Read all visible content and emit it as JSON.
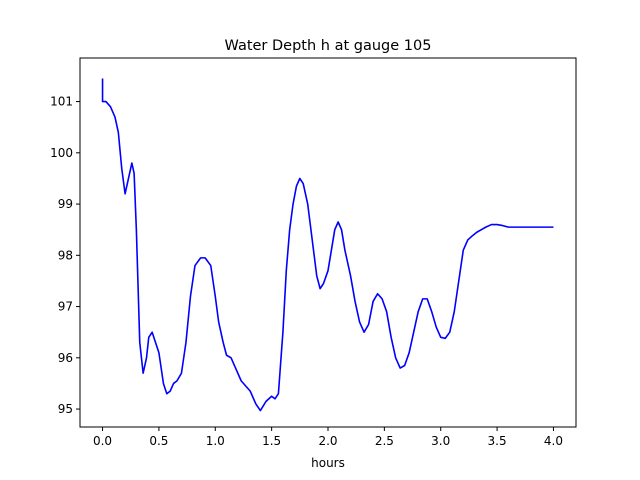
{
  "chart_data": {
    "type": "line",
    "title": "Water Depth h at gauge 105",
    "xlabel": "hours",
    "ylabel": "",
    "xlim": [
      -0.2,
      4.2
    ],
    "ylim": [
      94.65,
      101.85
    ],
    "xticks": [
      0.0,
      0.5,
      1.0,
      1.5,
      2.0,
      2.5,
      3.0,
      3.5,
      4.0
    ],
    "xtick_labels": [
      "0.0",
      "0.5",
      "1.0",
      "1.5",
      "2.0",
      "2.5",
      "3.0",
      "3.5",
      "4.0"
    ],
    "yticks": [
      95,
      96,
      97,
      98,
      99,
      100,
      101
    ],
    "ytick_labels": [
      "95",
      "96",
      "97",
      "98",
      "99",
      "100",
      "101"
    ],
    "grid": false,
    "series": [
      {
        "color": "#0000ff",
        "x": [
          0.0,
          0.0,
          0.0,
          0.03,
          0.07,
          0.11,
          0.14,
          0.17,
          0.2,
          0.23,
          0.26,
          0.28,
          0.3,
          0.33,
          0.36,
          0.39,
          0.41,
          0.44,
          0.47,
          0.5,
          0.54,
          0.57,
          0.6,
          0.63,
          0.66,
          0.7,
          0.74,
          0.78,
          0.82,
          0.87,
          0.91,
          0.96,
          1.0,
          1.03,
          1.07,
          1.1,
          1.14,
          1.18,
          1.23,
          1.27,
          1.31,
          1.36,
          1.4,
          1.45,
          1.5,
          1.53,
          1.56,
          1.6,
          1.63,
          1.66,
          1.69,
          1.72,
          1.75,
          1.78,
          1.82,
          1.86,
          1.9,
          1.93,
          1.96,
          2.0,
          2.03,
          2.06,
          2.09,
          2.12,
          2.15,
          2.2,
          2.24,
          2.28,
          2.32,
          2.36,
          2.4,
          2.44,
          2.48,
          2.52,
          2.56,
          2.6,
          2.64,
          2.68,
          2.72,
          2.76,
          2.8,
          2.84,
          2.88,
          2.92,
          2.96,
          3.0,
          3.04,
          3.08,
          3.12,
          3.16,
          3.2,
          3.24,
          3.28,
          3.32,
          3.36,
          3.4,
          3.45,
          3.5,
          3.55,
          3.6,
          3.65,
          3.7,
          3.75,
          3.8,
          3.85,
          3.9,
          3.94,
          3.97,
          4.0
        ],
        "y": [
          101.45,
          101.0,
          101.0,
          101.0,
          100.9,
          100.7,
          100.4,
          99.7,
          99.2,
          99.5,
          99.8,
          99.6,
          98.5,
          96.3,
          95.7,
          96.0,
          96.4,
          96.5,
          96.3,
          96.1,
          95.5,
          95.3,
          95.35,
          95.5,
          95.55,
          95.7,
          96.3,
          97.2,
          97.8,
          97.95,
          97.95,
          97.8,
          97.2,
          96.7,
          96.3,
          96.05,
          96.0,
          95.8,
          95.55,
          95.45,
          95.35,
          95.1,
          94.97,
          95.15,
          95.25,
          95.2,
          95.3,
          96.5,
          97.7,
          98.5,
          99.0,
          99.35,
          99.5,
          99.4,
          99.0,
          98.3,
          97.6,
          97.35,
          97.45,
          97.7,
          98.1,
          98.5,
          98.65,
          98.5,
          98.1,
          97.6,
          97.1,
          96.7,
          96.5,
          96.65,
          97.1,
          97.25,
          97.15,
          96.9,
          96.4,
          96.0,
          95.8,
          95.85,
          96.1,
          96.5,
          96.9,
          97.15,
          97.15,
          96.9,
          96.6,
          96.4,
          96.38,
          96.5,
          96.9,
          97.5,
          98.1,
          98.3,
          98.38,
          98.45,
          98.5,
          98.55,
          98.6,
          98.6,
          98.58,
          98.55,
          98.55,
          98.55,
          98.55,
          98.55,
          98.55,
          98.55,
          98.55,
          98.55,
          98.55
        ]
      }
    ]
  }
}
